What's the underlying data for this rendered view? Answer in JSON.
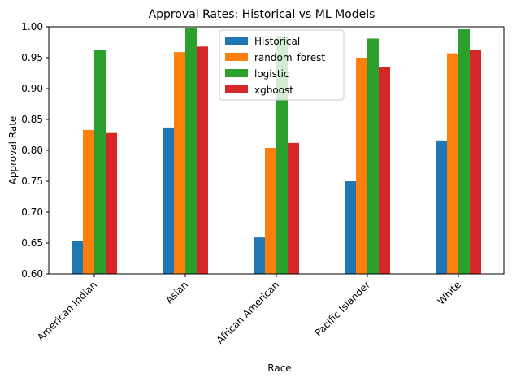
{
  "chart_data": {
    "type": "bar",
    "title": "Approval Rates: Historical vs ML Models",
    "xlabel": "Race",
    "ylabel": "Approval Rate",
    "ylim": [
      0.6,
      1.0
    ],
    "yticks": [
      "0.60",
      "0.65",
      "0.70",
      "0.75",
      "0.80",
      "0.85",
      "0.90",
      "0.95",
      "1.00"
    ],
    "categories": [
      "American Indian",
      "Asian",
      "African American",
      "Pacific Islander",
      "White"
    ],
    "series": [
      {
        "name": "Historical",
        "color": "#1f77b4",
        "values": [
          0.653,
          0.837,
          0.659,
          0.75,
          0.816
        ]
      },
      {
        "name": "random_forest",
        "color": "#ff7f0e",
        "values": [
          0.833,
          0.959,
          0.804,
          0.95,
          0.957
        ]
      },
      {
        "name": "logistic",
        "color": "#2ca02c",
        "values": [
          0.962,
          0.998,
          0.985,
          0.981,
          0.996
        ]
      },
      {
        "name": "xgboost",
        "color": "#d62728",
        "values": [
          0.828,
          0.968,
          0.812,
          0.935,
          0.963
        ]
      }
    ],
    "legend_position": "top-center",
    "grid": false
  }
}
